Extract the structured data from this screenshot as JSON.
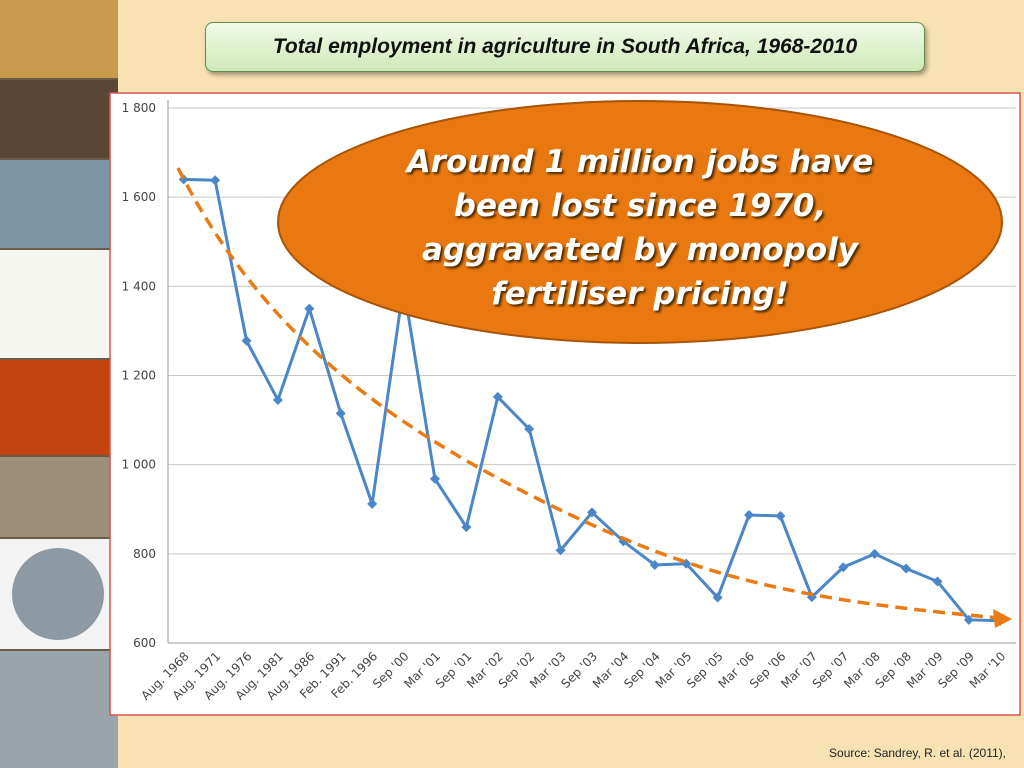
{
  "chart_data": {
    "type": "line",
    "title": "Total employment in agriculture in South Africa, 1968-2010",
    "annotation": "Around 1 million jobs have been lost since 1970, aggravated by monopoly fertiliser pricing!",
    "source": "Source: Sandrey, R. et al. (2011),",
    "categories": [
      "Aug. 1968",
      "Aug. 1971",
      "Aug. 1976",
      "Aug. 1981",
      "Aug. 1986",
      "Feb. 1991",
      "Feb. 1996",
      "Sep '00",
      "Mar '01",
      "Sep '01",
      "Mar '02",
      "Sep '02",
      "Mar '03",
      "Sep '03",
      "Mar '04",
      "Sep '04",
      "Mar '05",
      "Sep '05",
      "Mar '06",
      "Sep '06",
      "Mar '07",
      "Sep '07",
      "Mar '08",
      "Sep '08",
      "Mar '09",
      "Sep '09",
      "Mar '10"
    ],
    "values": [
      1640,
      1638,
      1278,
      1145,
      1350,
      1115,
      912,
      1400,
      968,
      860,
      1152,
      1080,
      808,
      893,
      828,
      775,
      778,
      702,
      887,
      885,
      703,
      770,
      800,
      767,
      738,
      652,
      650
    ],
    "color": "#4a86c8",
    "ylim": [
      600,
      1800
    ],
    "yticks": [
      600,
      800,
      {
        "value": 1000,
        "label": "1 000"
      },
      {
        "value": 1200,
        "label": "1 200"
      },
      {
        "value": 1400,
        "label": "1 400"
      },
      {
        "value": 1600,
        "label": "1 600"
      },
      {
        "value": 1800,
        "label": "1 800"
      }
    ],
    "grid": true
  }
}
